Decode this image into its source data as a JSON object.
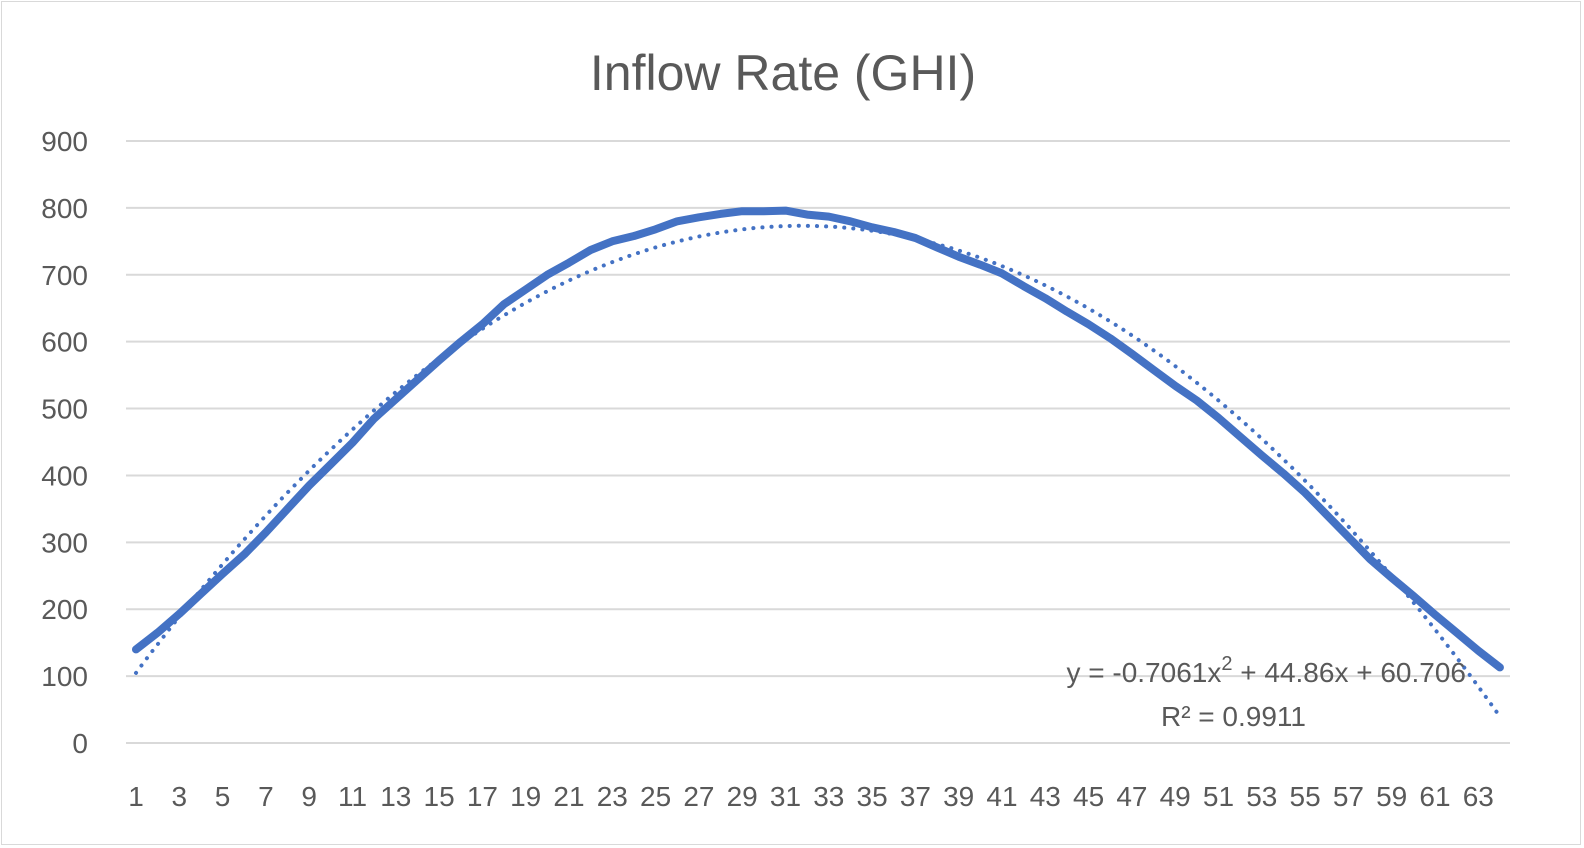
{
  "chart_data": {
    "type": "line",
    "title": "Inflow Rate (GHI)",
    "ylim": [
      0,
      900
    ],
    "yticks": [
      "0",
      "100",
      "200",
      "300",
      "400",
      "500",
      "600",
      "700",
      "800",
      "900"
    ],
    "x": [
      1,
      2,
      3,
      4,
      5,
      6,
      7,
      8,
      9,
      10,
      11,
      12,
      13,
      14,
      15,
      16,
      17,
      18,
      19,
      20,
      21,
      22,
      23,
      24,
      25,
      26,
      27,
      28,
      29,
      30,
      31,
      32,
      33,
      34,
      35,
      36,
      37,
      38,
      39,
      40,
      41,
      42,
      43,
      44,
      45,
      46,
      47,
      48,
      49,
      50,
      51,
      52,
      53,
      54,
      55,
      56,
      57,
      58,
      59,
      60,
      61,
      62,
      63,
      64
    ],
    "xtick_labels": [
      "1",
      "3",
      "5",
      "7",
      "9",
      "11",
      "13",
      "15",
      "17",
      "19",
      "21",
      "23",
      "25",
      "27",
      "29",
      "31",
      "33",
      "35",
      "37",
      "39",
      "41",
      "43",
      "45",
      "47",
      "49",
      "51",
      "53",
      "55",
      "57",
      "59",
      "61",
      "63"
    ],
    "series": [
      {
        "values": [
          140,
          165,
          193,
          223,
          253,
          282,
          315,
          350,
          385,
          417,
          449,
          485,
          514,
          543,
          572,
          600,
          626,
          656,
          678,
          700,
          718,
          737,
          750,
          758,
          768,
          780,
          786,
          791,
          795,
          795,
          796,
          790,
          787,
          780,
          771,
          764,
          755,
          741,
          727,
          715,
          702,
          683,
          665,
          645,
          626,
          605,
          582,
          558,
          534,
          512,
          486,
          458,
          430,
          403,
          374,
          341,
          308,
          275,
          247,
          220,
          192,
          165,
          138,
          113
        ],
        "color": "#4472c4",
        "style": "solid"
      }
    ],
    "trendline": {
      "type": "polynomial",
      "order": 2,
      "color": "#4472c4",
      "style": "dotted",
      "coefficients": {
        "a": -0.7061,
        "b": 44.86,
        "c": 60.706
      },
      "equation_prefix": "y = -0.7061x",
      "equation_exp": "2",
      "equation_suffix": " + 44.86x + 60.706",
      "r2_label": "R² = 0.9911"
    },
    "grid": true,
    "legend": "none"
  }
}
